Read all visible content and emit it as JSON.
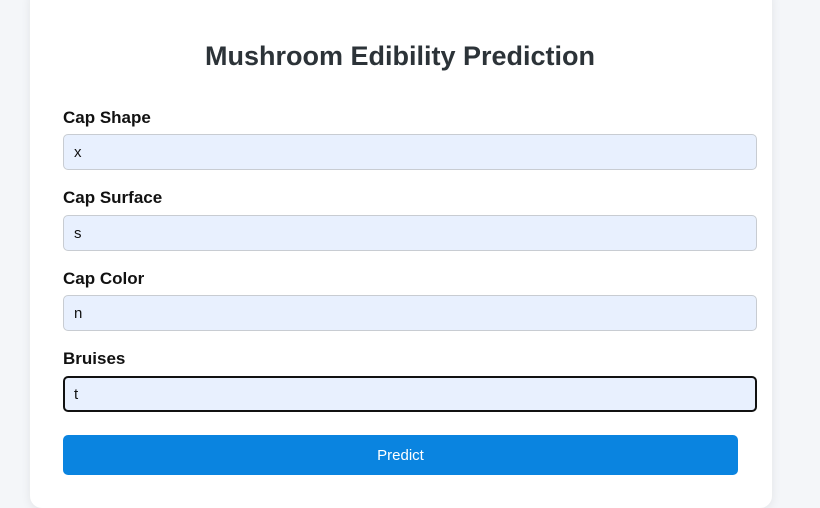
{
  "header": {
    "title": "Mushroom Edibility Prediction"
  },
  "form": {
    "fields": [
      {
        "label": "Cap Shape",
        "value": "x"
      },
      {
        "label": "Cap Surface",
        "value": "s"
      },
      {
        "label": "Cap Color",
        "value": "n"
      },
      {
        "label": "Bruises",
        "value": "t",
        "focused": true
      }
    ],
    "submit_label": "Predict"
  },
  "colors": {
    "accent": "#0a84e0",
    "field_bg": "#e8f0fe",
    "page_bg": "#f4f6f9"
  }
}
